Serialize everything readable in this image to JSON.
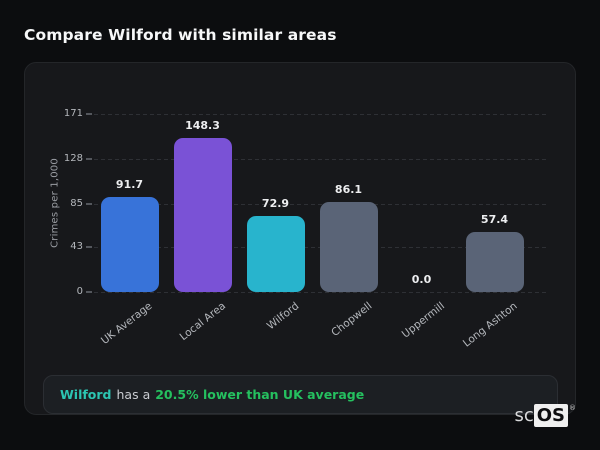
{
  "page": {
    "title": "Compare Wilford with similar areas"
  },
  "chart_data": {
    "type": "bar",
    "categories": [
      "UK Average",
      "Local Area",
      "Wilford",
      "Chopwell",
      "Uppermill",
      "Long Ashton"
    ],
    "values": [
      91.7,
      148.3,
      72.9,
      86.1,
      0.0,
      57.4
    ],
    "value_labels": [
      "91.7",
      "148.3",
      "72.9",
      "86.1",
      "0.0",
      "57.4"
    ],
    "bar_colors": [
      "#3873d9",
      "#7a52d6",
      "#28b4cd",
      "#5a6477",
      "#5a6477",
      "#5a6477"
    ],
    "title": "",
    "xlabel": "",
    "ylabel": "Crimes per 1,000",
    "yticks": [
      171,
      128,
      85,
      43,
      0
    ],
    "ylim": [
      0,
      171
    ],
    "grid": "dashed-horizontal",
    "legend": "none"
  },
  "note": {
    "subject": "Wilford",
    "connector": "has a",
    "highlight": "20.5% lower than UK average",
    "subject_color": "#2cc5b2",
    "highlight_color": "#25c05f"
  },
  "logo": {
    "prefix": "sc",
    "box": "OS",
    "registered": "®"
  },
  "colors": {
    "page_bg": "#0c0d0f",
    "card_bg": "#17181b",
    "accent_blue": "#3873d9",
    "accent_purple": "#7a52d6",
    "accent_teal": "#28b4cd",
    "neutral_bar": "#5a6477",
    "positive_green": "#25c05f"
  }
}
